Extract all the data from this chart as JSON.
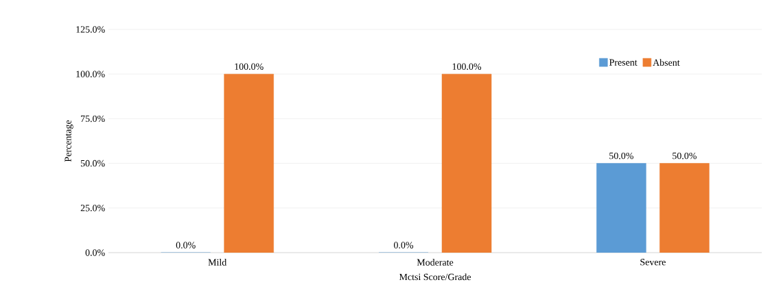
{
  "chart_data": {
    "type": "bar",
    "xlabel": "Mctsi Score/Grade",
    "ylabel": "Percentage",
    "categories": [
      "Mild",
      "Moderate",
      "Severe"
    ],
    "series": [
      {
        "name": "Present",
        "color": "#5b9bd5",
        "values": [
          0,
          0,
          50
        ],
        "value_labels": [
          "0.0%",
          "0.0%",
          "50.0%"
        ]
      },
      {
        "name": "Absent",
        "color": "#ed7d31",
        "values": [
          100,
          100,
          50
        ],
        "value_labels": [
          "100.0%",
          "100.0%",
          "50.0%"
        ]
      }
    ],
    "ylim": [
      0,
      125
    ],
    "yticks": [
      {
        "value": 0,
        "label": "0.0%"
      },
      {
        "value": 25,
        "label": "25.0%"
      },
      {
        "value": 50,
        "label": "50.0%"
      },
      {
        "value": 75,
        "label": "75.0%"
      },
      {
        "value": 100,
        "label": "100.0%"
      },
      {
        "value": 125,
        "label": "125.0%"
      }
    ],
    "grid": "y",
    "legend": "top right"
  }
}
